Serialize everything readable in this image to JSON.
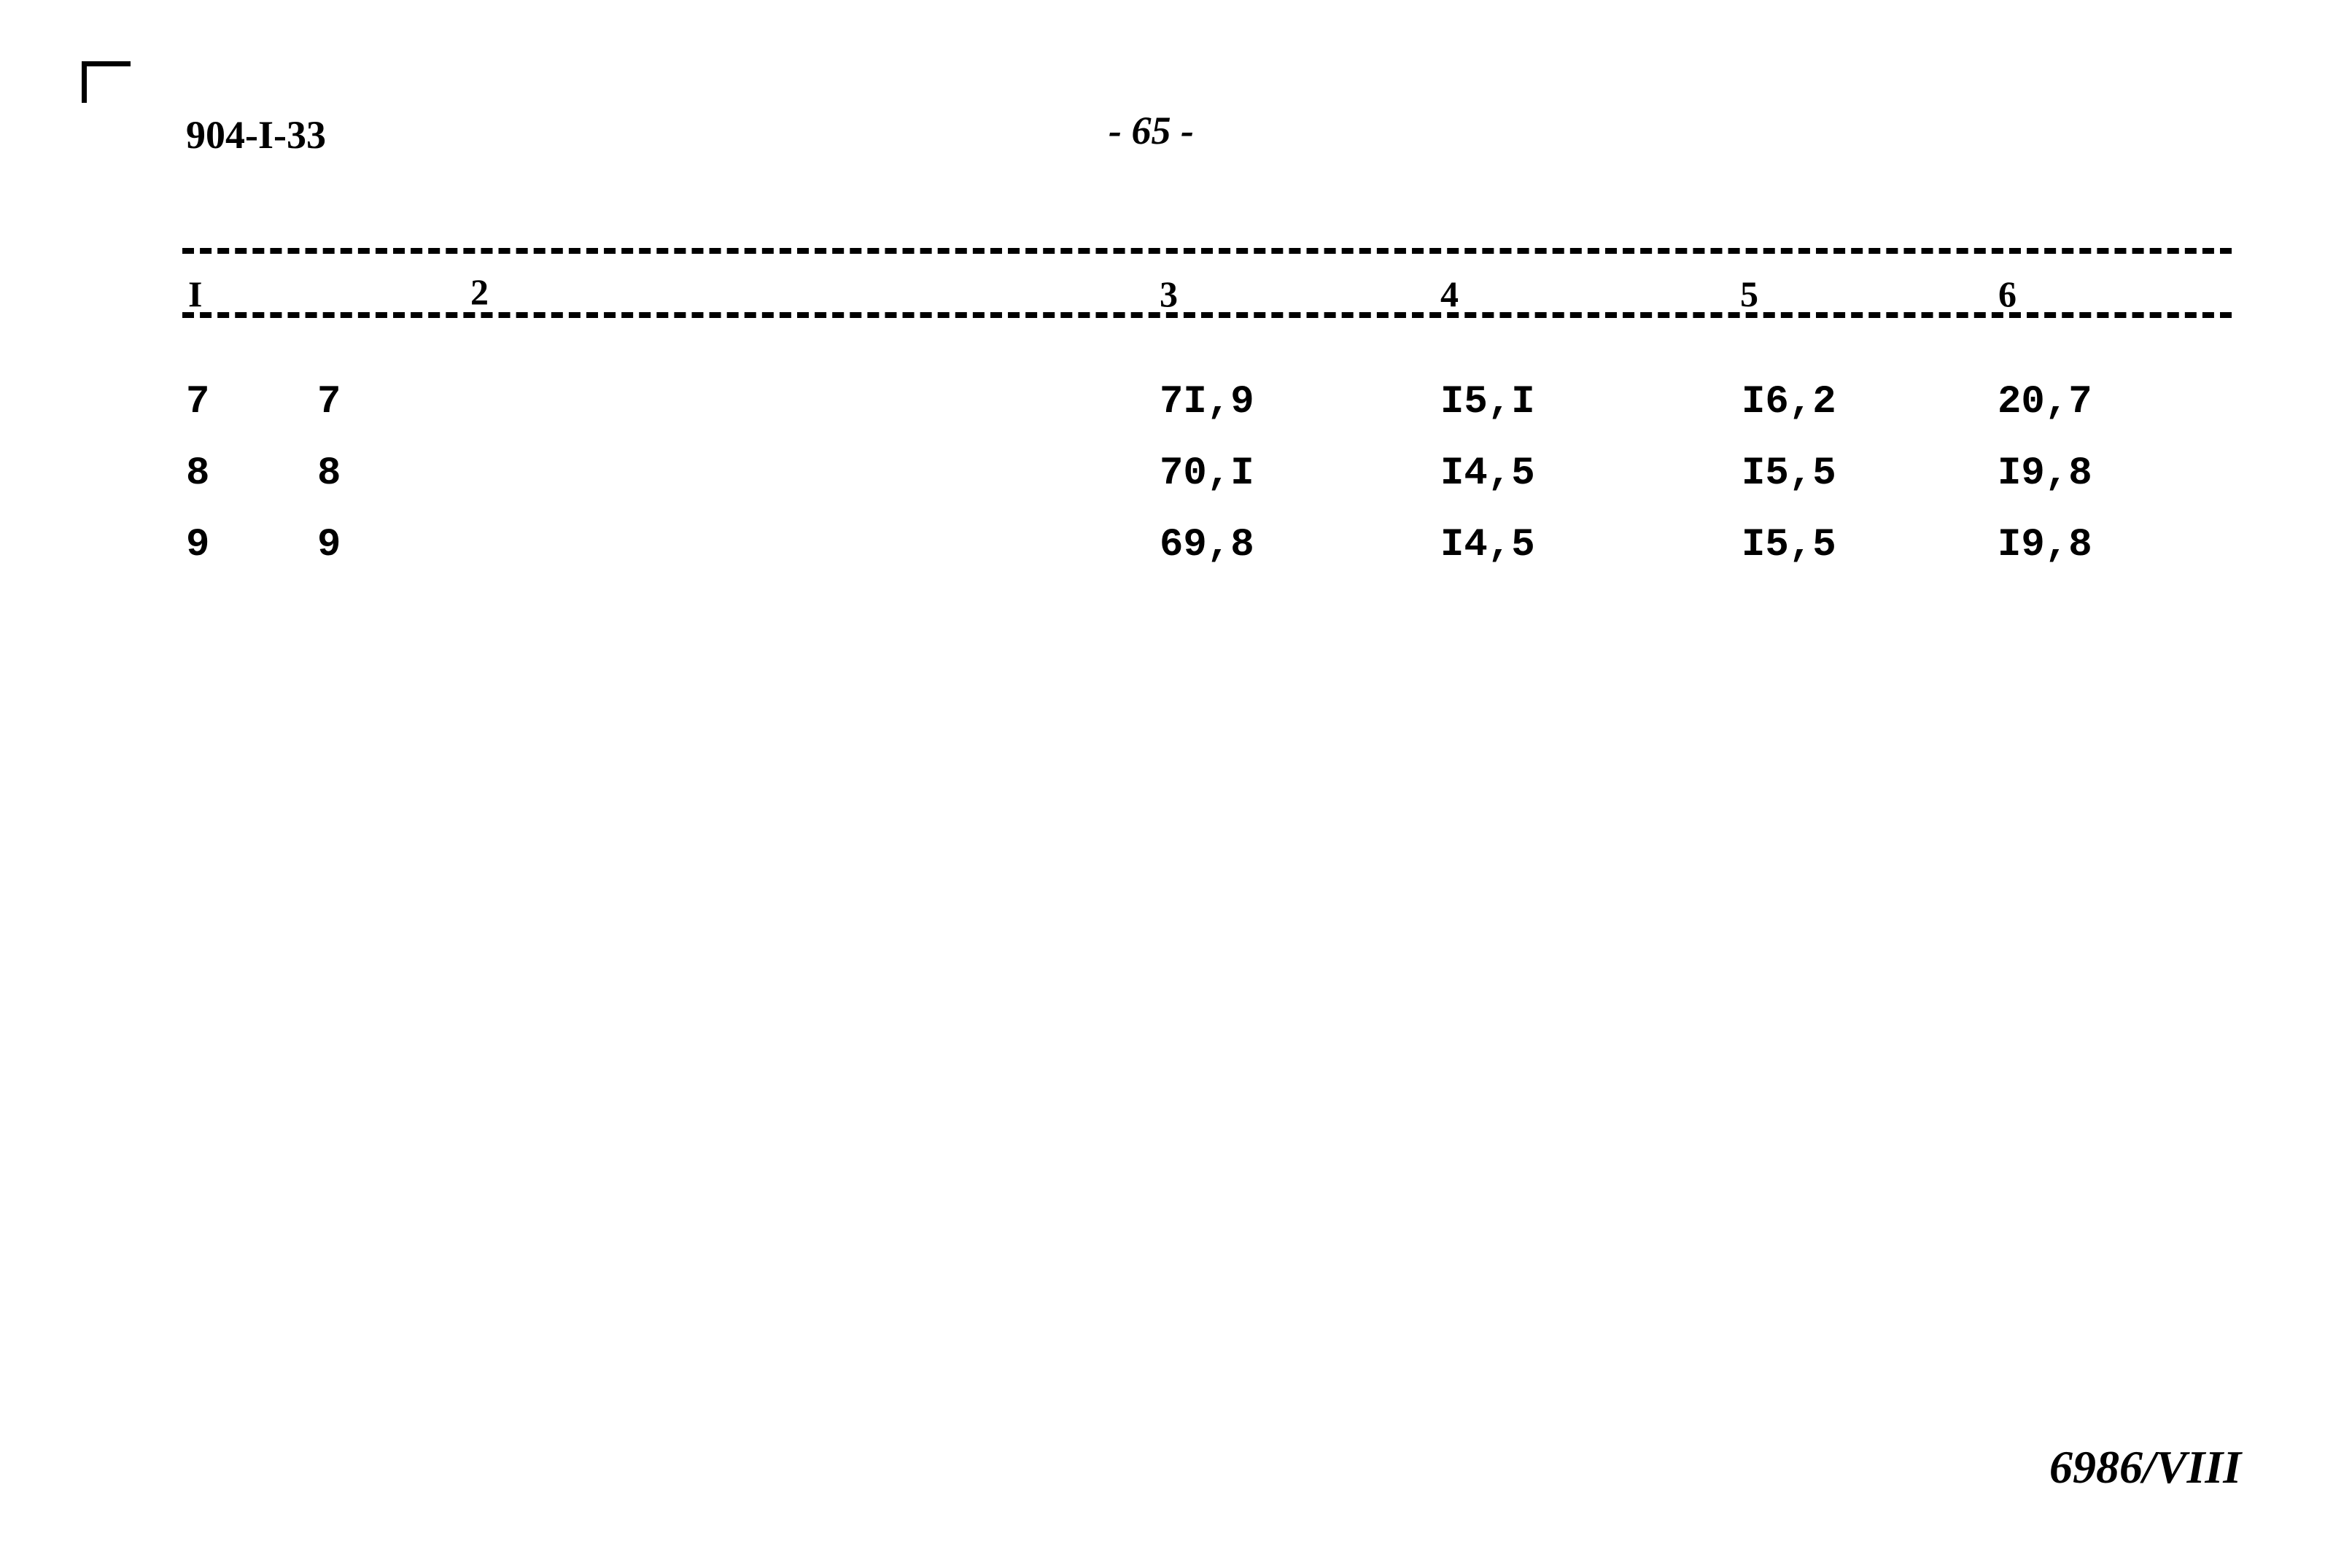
{
  "header": {
    "doc_code": "904-I-33",
    "page_number": "- 65 -"
  },
  "table": {
    "columns": [
      "I",
      "2",
      "3",
      "4",
      "5",
      "6"
    ],
    "rows": [
      [
        "7",
        "7",
        "7I,9",
        "I5,I",
        "I6,2",
        "20,7"
      ],
      [
        "8",
        "8",
        "70,I",
        "I4,5",
        "I5,5",
        "I9,8"
      ],
      [
        "9",
        "9",
        "69,8",
        "I4,5",
        "I5,5",
        "I9,8"
      ]
    ]
  },
  "footer": {
    "handwritten_mark": "6986/VIII"
  }
}
